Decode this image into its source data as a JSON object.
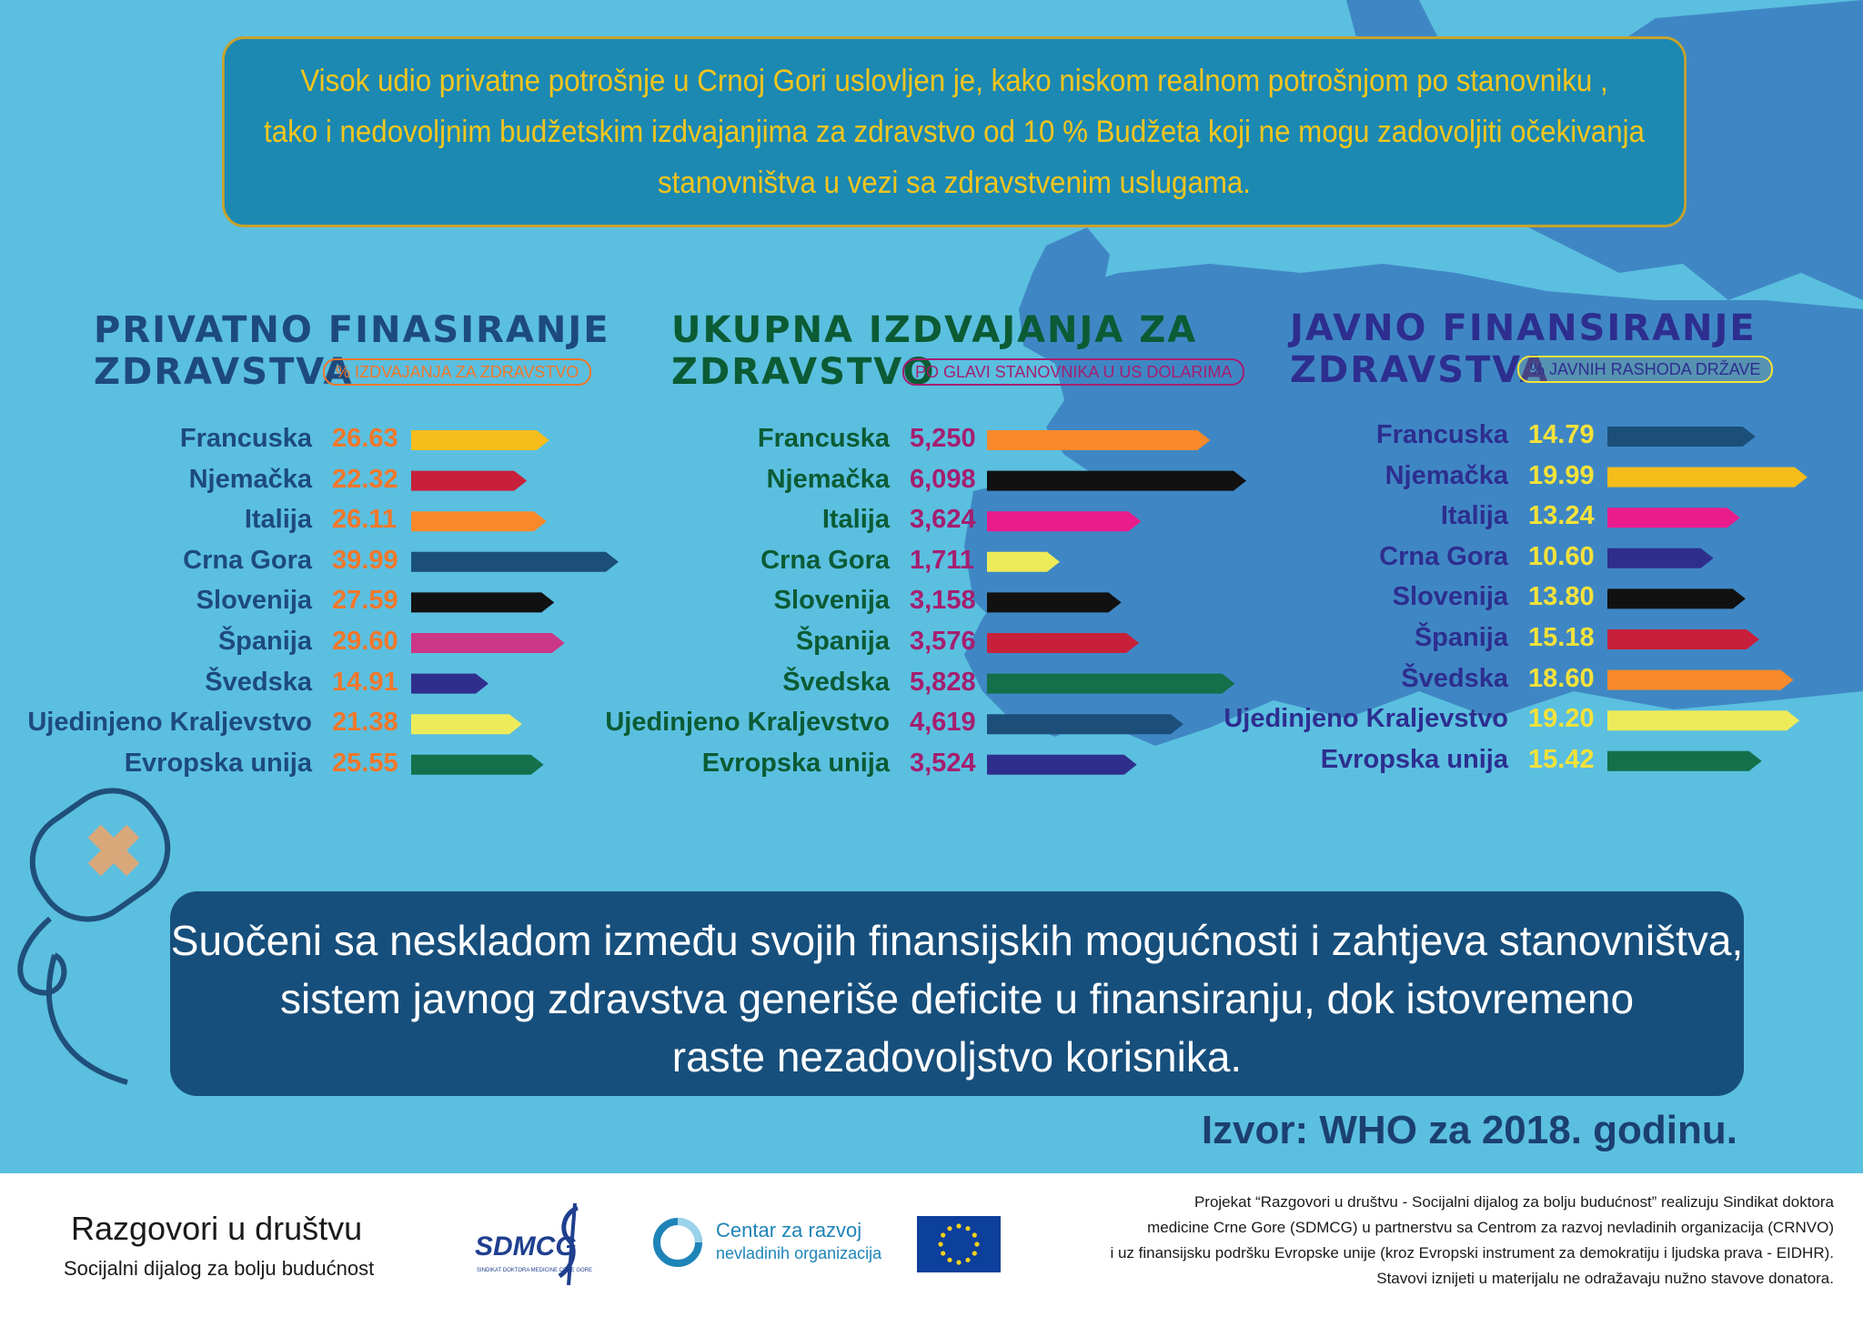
{
  "top_box": {
    "lines": [
      "Visok udio privatne potrošnje u Crnoj Gori uslovljen je, kako niskom realnom potrošnjom po stanovniku ,",
      "tako i nedovoljnim budžetskim izdvajanjima za zdravstvo od 10 % Budžeta koji ne mogu zadovoljiti očekivanja",
      "stanovništva u vezi sa zdravstvenim uslugama."
    ]
  },
  "colors": {
    "background": "#5bbfe0",
    "map": "#3f87c4",
    "top_box_fill": "#1c89b2",
    "top_box_text": "#f4c51d",
    "bottom_box_fill": "#174f7c"
  },
  "chart_data": [
    {
      "type": "bar",
      "title": "PRIVATNO FINASIRANJE ZDRAVSTVA",
      "title_lines": [
        "PRIVATNO FINASIRANJE",
        "ZDRAVSTVA"
      ],
      "unit_label": "% IZDVAJANJA ZA ZDRAVSTVO",
      "title_color": "#1d4a7d",
      "label_color": "#1d4a7d",
      "value_color": "#f2772a",
      "badge_color": "#f2772a",
      "categories": [
        "Francuska",
        "Njemačka",
        "Italija",
        "Crna Gora",
        "Slovenija",
        "Španija",
        "Švedska",
        "Ujedinjeno Kraljevstvo",
        "Evropska unija"
      ],
      "values": [
        26.63,
        22.32,
        26.11,
        39.99,
        27.59,
        29.6,
        14.91,
        21.38,
        25.55
      ],
      "value_labels": [
        "26.63",
        "22.32",
        "26.11",
        "39.99",
        "27.59",
        "29.60",
        "14.91",
        "21.38",
        "25.55"
      ],
      "bar_colors": [
        "#f6bd1a",
        "#c8203a",
        "#f7892b",
        "#1b4f7a",
        "#111111",
        "#cb3687",
        "#2f2e8c",
        "#eeeb5a",
        "#13704a"
      ]
    },
    {
      "type": "bar",
      "title": "UKUPNA IZDVAJANJA ZA ZDRAVSTVO",
      "title_lines": [
        "UKUPNA IZDVAJANJA ZA",
        "ZDRAVSTVO"
      ],
      "unit_label": "PO GLAVI STANOVNIKA U US DOLARIMA",
      "title_color": "#0b5b34",
      "label_color": "#0b5b34",
      "value_color": "#a51e6f",
      "badge_color": "#a51e6f",
      "categories": [
        "Francuska",
        "Njemačka",
        "Italija",
        "Crna Gora",
        "Slovenija",
        "Španija",
        "Švedska",
        "Ujedinjeno Kraljevstvo",
        "Evropska unija"
      ],
      "values": [
        5250,
        6098,
        3624,
        1711,
        3158,
        3576,
        5828,
        4619,
        3524
      ],
      "value_labels": [
        "5,250",
        "6,098",
        "3,624",
        "1,711",
        "3,158",
        "3,576",
        "5,828",
        "4,619",
        "3,524"
      ],
      "bar_colors": [
        "#f7892b",
        "#111111",
        "#ea1c8c",
        "#eeeb5a",
        "#111111",
        "#c8203a",
        "#13704a",
        "#1b4f7a",
        "#2f2e8c"
      ]
    },
    {
      "type": "bar",
      "title": "JAVNO FINANSIRANJE ZDRAVSTVA",
      "title_lines": [
        "JAVNO FINANSIRANJE",
        "ZDRAVSTVA"
      ],
      "unit_label": "% JAVNIH RASHODA DRŽAVE",
      "title_color": "#2d2e8f",
      "label_color": "#2d2e8f",
      "value_color": "#f4e23a",
      "badge_color": "#f4e23a",
      "categories": [
        "Francuska",
        "Njemačka",
        "Italija",
        "Crna Gora",
        "Slovenija",
        "Španija",
        "Švedska",
        "Ujedinjeno Kraljevstvo",
        "Evropska unija"
      ],
      "values": [
        14.79,
        19.99,
        13.24,
        10.6,
        13.8,
        15.18,
        18.6,
        19.2,
        15.42
      ],
      "value_labels": [
        "14.79",
        "19.99",
        "13.24",
        "10.60",
        "13.80",
        "15.18",
        "18.60",
        "19.20",
        "15.42"
      ],
      "bar_colors": [
        "#1b4f7a",
        "#f6bd1a",
        "#ea1c8c",
        "#2f2e8c",
        "#111111",
        "#c8203a",
        "#f7892b",
        "#eeeb5a",
        "#13704a"
      ]
    }
  ],
  "bottom_box": {
    "lines": [
      "Suočeni sa neskladom između svojih finansijskih mogućnosti i zahtjeva stanovništva,",
      "sistem javnog zdravstva generiše deficite u finansiranju, dok istovremeno",
      "raste nezadovoljstvo korisnika."
    ]
  },
  "source": "Izvor: WHO za 2018. godinu.",
  "footer": {
    "title": "Razgovori u društvu",
    "subtitle": "Socijalni dijalog za bolju budućnost",
    "sdmcg_logo_text": "SDMCG",
    "sdmcg_logo_subtext": "SINDIKAT DOKTORA MEDICINE CRNE GORE",
    "crnvo_line1": "Centar za razvoj",
    "crnvo_line2": "nevladinih organizacija",
    "text_lines": [
      "Projekat “Razgovori u društvu - Socijalni dijalog za bolju budućnost” realizuju Sindikat doktora",
      "medicine Crne Gore (SDMCG) u partnerstvu sa Centrom za razvoj nevladinih organizacija (CRNVO)",
      "i uz finansijsku podršku Evropske unije (kroz Evropski instrument za demokratiju i ljudska prava - EIDHR).",
      "Stavovi iznijeti u materijalu ne odražavaju nužno stavove donatora."
    ]
  }
}
